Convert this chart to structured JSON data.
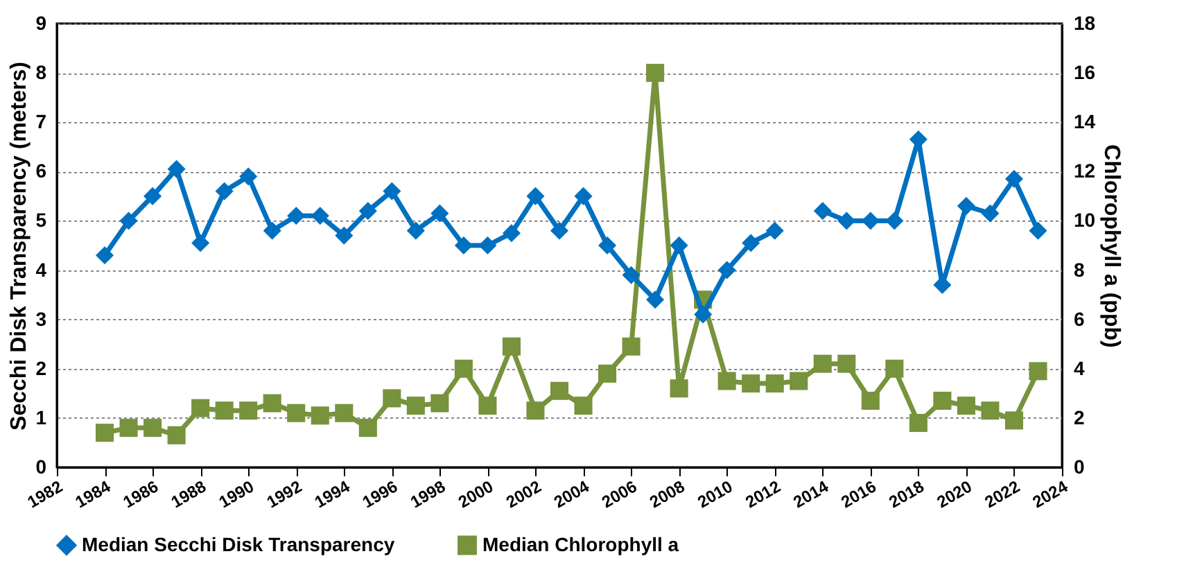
{
  "chart_data": {
    "type": "line",
    "ylabel": "Secchi Disk Transparency (meters)",
    "y2label": "Chlorophyll a (ppb)",
    "x": [
      1984,
      1985,
      1986,
      1987,
      1988,
      1989,
      1990,
      1991,
      1992,
      1993,
      1994,
      1995,
      1996,
      1997,
      1998,
      1999,
      2000,
      2001,
      2002,
      2003,
      2004,
      2005,
      2006,
      2007,
      2008,
      2009,
      2010,
      2011,
      2012,
      2013,
      2014,
      2015,
      2016,
      2017,
      2018,
      2019,
      2020,
      2021,
      2022,
      2023
    ],
    "series": [
      {
        "name": "Median Secchi Disk Transparency",
        "color": "#0070c0",
        "marker": "diamond",
        "values": [
          4.3,
          5.0,
          5.5,
          6.05,
          4.55,
          5.6,
          5.9,
          4.8,
          5.1,
          5.1,
          4.7,
          5.2,
          5.6,
          4.8,
          5.15,
          4.5,
          4.5,
          4.75,
          5.5,
          4.8,
          5.5,
          4.5,
          3.9,
          3.4,
          4.5,
          3.1,
          4.0,
          4.55,
          4.8,
          null,
          5.2,
          5.0,
          5.0,
          5.0,
          6.65,
          3.7,
          5.3,
          5.15,
          5.85,
          4.8
        ]
      },
      {
        "name": "Median Chlorophyll a",
        "color": "#77933c",
        "marker": "square",
        "axis": "y2",
        "values": [
          1.4,
          1.6,
          1.6,
          1.3,
          2.4,
          2.3,
          2.3,
          2.6,
          2.2,
          2.1,
          2.2,
          1.6,
          2.8,
          2.5,
          2.6,
          4.0,
          2.5,
          4.9,
          2.3,
          3.1,
          2.5,
          3.8,
          4.9,
          16.0,
          3.2,
          6.8,
          3.5,
          3.4,
          3.4,
          3.5,
          4.2,
          4.2,
          2.7,
          4.0,
          1.8,
          2.7,
          2.5,
          2.3,
          1.9,
          3.9
        ]
      }
    ],
    "xlim": [
      1982,
      2024
    ],
    "xticks": [
      1982,
      1984,
      1986,
      1988,
      1990,
      1992,
      1994,
      1996,
      1998,
      2000,
      2002,
      2004,
      2006,
      2008,
      2010,
      2012,
      2014,
      2016,
      2018,
      2020,
      2022,
      2024
    ],
    "ylim": [
      0,
      9
    ],
    "yticks": [
      0,
      1,
      2,
      3,
      4,
      5,
      6,
      7,
      8,
      9
    ],
    "y2lim": [
      0,
      18
    ],
    "y2ticks": [
      0,
      2,
      4,
      6,
      8,
      10,
      12,
      14,
      16,
      18
    ],
    "grid": "y",
    "legend": "bottom"
  }
}
